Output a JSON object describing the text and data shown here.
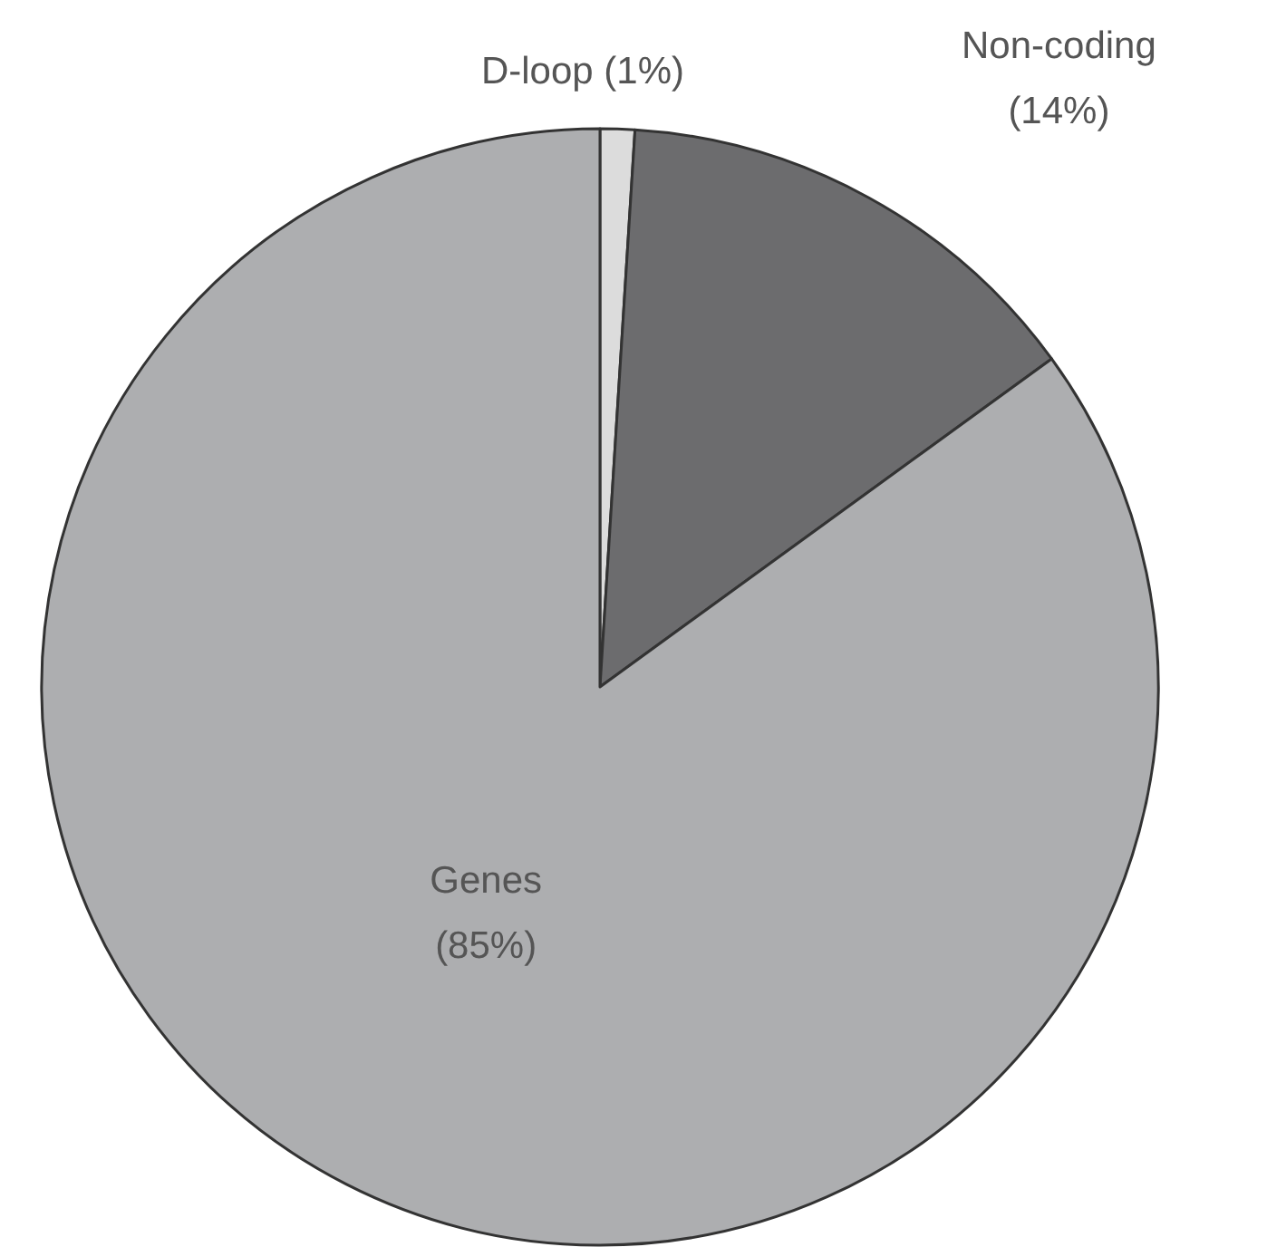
{
  "chart_data": {
    "type": "pie",
    "categories": [
      "D-loop",
      "Non-coding",
      "Genes"
    ],
    "values": [
      1,
      14,
      85
    ],
    "value_labels": [
      "(1%)",
      "(14%)",
      "(85%)"
    ],
    "colors": [
      "#dcdcdc",
      "#6c6c6e",
      "#adaeb0"
    ]
  }
}
